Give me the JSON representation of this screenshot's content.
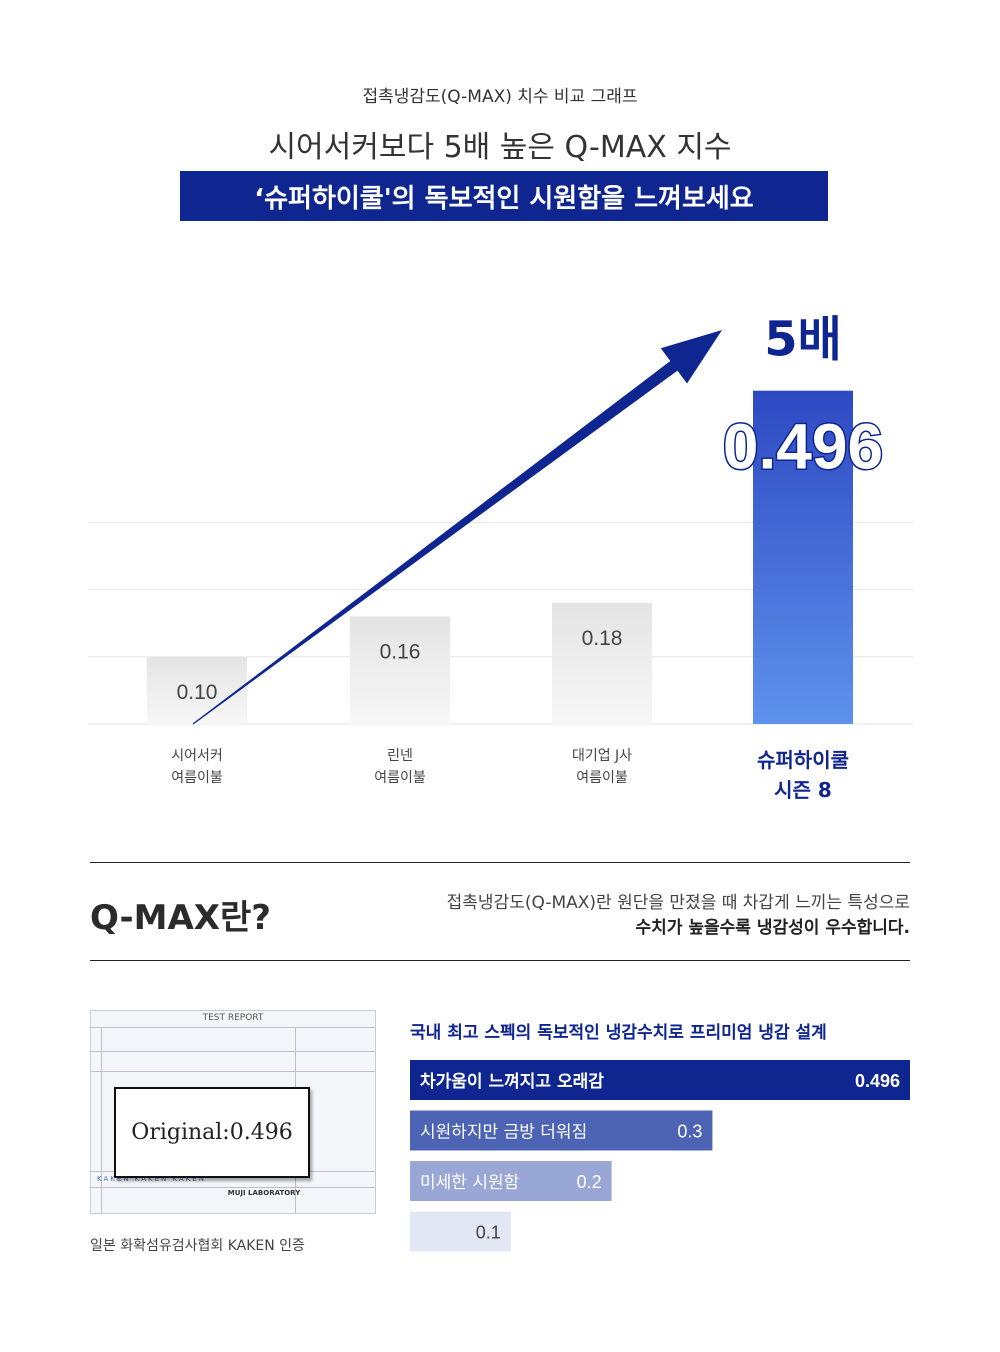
{
  "header": {
    "subtitle": "접촉냉감도(Q-MAX) 치수 비교 그래프",
    "title": "시어서커보다 5배 높은 Q-MAX 지수",
    "band": "‘슈퍼하이쿨'의 독보적인 시원함을 느껴보세요"
  },
  "chart_data": [
    {
      "type": "bar",
      "categories": [
        [
          "시어서커",
          "여름이불"
        ],
        [
          "린넨",
          "여름이불"
        ],
        [
          "대기업 J사",
          "여름이불"
        ],
        [
          "슈퍼하이쿨",
          "시즌 8"
        ]
      ],
      "values": [
        0.1,
        0.16,
        0.18,
        0.496
      ],
      "value_labels": [
        "0.10",
        "0.16",
        "0.18",
        "0.496"
      ],
      "highlight_index": 3,
      "annotation": "5배",
      "ylim": [
        0,
        0.5
      ],
      "grid": true,
      "colors": {
        "bar": "#dedede",
        "highlight_top": "#2e49c2",
        "highlight_bottom": "#5e92ec",
        "arrow": "#0f2590",
        "grid": "#e6e6e6"
      }
    },
    {
      "type": "bar",
      "orientation": "horizontal",
      "title": "국내 최고 스펙의 독보적인 냉감수치로 프리미엄 냉감 설계",
      "categories": [
        "차가움이 느껴지고 오래감",
        "시원하지만 금방 더워짐",
        "미세한 시원함",
        ""
      ],
      "values": [
        0.496,
        0.3,
        0.2,
        0.1
      ],
      "value_labels": [
        "0.496",
        "0.3",
        "0.2",
        "0.1"
      ],
      "colors": [
        "#0f2590",
        "#4d64b4",
        "#98a7d6",
        "#e3e7f4"
      ],
      "xlim": [
        0,
        0.496
      ]
    }
  ],
  "qmax": {
    "heading": "Q-MAX란?",
    "desc_line1": "접촉냉감도(Q-MAX)란 원단을 만졌을 때 차갑게 느끼는 특성으로",
    "desc_line2": "수치가 높을수록 냉감성이 우수합니다."
  },
  "report": {
    "title": "TEST REPORT",
    "original": "Original:0.496",
    "brand": "KAKEN  KAKEN  KAKEN",
    "lab": "MUJI LABORATORY",
    "caption": "일본 화확섬유검사협회 KAKEN 인증"
  }
}
